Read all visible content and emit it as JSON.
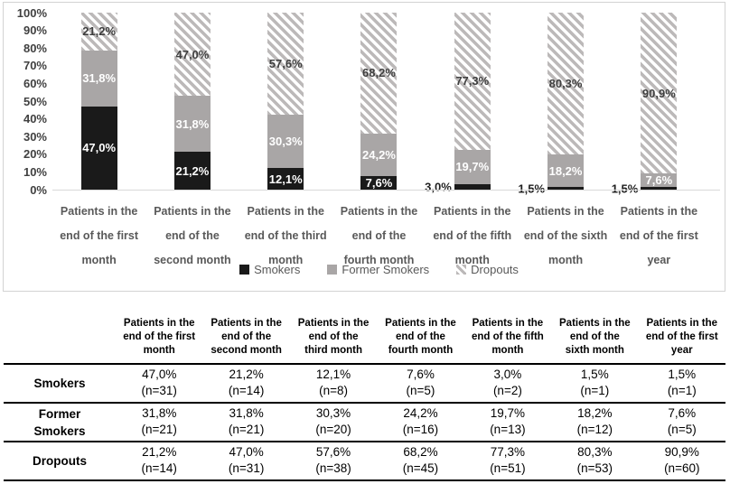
{
  "chart_data": {
    "type": "bar",
    "subtype": "100%-stacked-column",
    "title": "",
    "xlabel": "",
    "ylabel": "",
    "ylim": [
      0,
      100
    ],
    "grid": false,
    "legend_position": "bottom-center",
    "y_ticks": [
      "100%",
      "90%",
      "80%",
      "70%",
      "60%",
      "50%",
      "40%",
      "30%",
      "20%",
      "10%",
      "0%"
    ],
    "categories": [
      "Patients in the end of the first month",
      "Patients in the end of the second month",
      "Patients in the end of the third month",
      "Patients in the end of the fourth month",
      "Patients in the end of the fifth month",
      "Patients in the end of the sixth month",
      "Patients in the end of the first year"
    ],
    "category_label_lines": [
      [
        "Patients in the",
        "end of the first",
        "month"
      ],
      [
        "Patients in the",
        "end of the",
        "second month"
      ],
      [
        "Patients in the",
        "end of the third",
        "month"
      ],
      [
        "Patients in the",
        "end of the",
        "fourth month"
      ],
      [
        "Patients in the",
        "end of the fifth",
        "month"
      ],
      [
        "Patients in the",
        "end of the sixth",
        "month"
      ],
      [
        "Patients in the",
        "end of the first",
        "year"
      ]
    ],
    "series": [
      {
        "key": "smokers",
        "name": "Smokers",
        "color": "#1a1a1a",
        "pattern": "solid",
        "values": [
          47.0,
          21.2,
          12.1,
          7.6,
          3.0,
          1.5,
          1.5
        ],
        "labels": [
          "47,0%",
          "21,2%",
          "12,1%",
          "7,6%",
          "3,0%",
          "1,5%",
          "1,5%"
        ],
        "label_color": "white",
        "label_positions": [
          "inside",
          "inside",
          "inside",
          "inside",
          "outside-left",
          "outside-left",
          "outside-left"
        ]
      },
      {
        "key": "former",
        "name": "Former Smokers",
        "color": "#a9a6a6",
        "pattern": "solid",
        "values": [
          31.8,
          31.8,
          30.3,
          24.2,
          19.7,
          18.2,
          7.6
        ],
        "labels": [
          "31,8%",
          "31,8%",
          "30,3%",
          "24,2%",
          "19,7%",
          "18,2%",
          "7,6%"
        ],
        "label_color": "white",
        "label_positions": [
          "inside",
          "inside",
          "inside",
          "inside",
          "inside",
          "inside",
          "inside"
        ]
      },
      {
        "key": "dropouts",
        "name": "Dropouts",
        "color": "#bcb9b9",
        "pattern": "diagonal-hatch",
        "values": [
          21.2,
          47.0,
          57.6,
          68.2,
          77.3,
          80.3,
          90.9
        ],
        "labels": [
          "21,2%",
          "47,0%",
          "57,6%",
          "68,2%",
          "77,3%",
          "80,3%",
          "90,9%"
        ],
        "label_color": "dark",
        "label_positions": [
          "inside",
          "inside",
          "inside",
          "inside",
          "inside",
          "inside",
          "inside"
        ]
      }
    ],
    "legend": [
      "Smokers",
      "Former Smokers",
      "Dropouts"
    ]
  },
  "table": {
    "header": [
      "",
      "Patients in the end of the first month",
      "Patients in the end of the second month",
      "Patients in the end of the third month",
      "Patients in the end of the fourth month",
      "Patients in the end of the fifth month",
      "Patients in the end of the sixth month",
      "Patients in the end of the first year"
    ],
    "header_lines": [
      [
        ""
      ],
      [
        "Patients in the",
        "end of the first",
        "month"
      ],
      [
        "Patients in the",
        "end of the",
        "second month"
      ],
      [
        "Patients in the",
        "end of the",
        "third month"
      ],
      [
        "Patients in the",
        "end of the",
        "fourth month"
      ],
      [
        "Patients in the",
        "end of the fifth",
        "month"
      ],
      [
        "Patients in the",
        "end of the",
        "sixth month"
      ],
      [
        "Patients in the",
        "end of the first",
        "year"
      ]
    ],
    "rows": [
      {
        "label": "Smokers",
        "cells": [
          [
            "47,0%",
            "(n=31)"
          ],
          [
            "21,2%",
            "(n=14)"
          ],
          [
            "12,1%",
            "(n=8)"
          ],
          [
            "7,6%",
            "(n=5)"
          ],
          [
            "3,0%",
            "(n=2)"
          ],
          [
            "1,5%",
            "(n=1)"
          ],
          [
            "1,5%",
            "(n=1)"
          ]
        ]
      },
      {
        "label": "Former Smokers",
        "cells": [
          [
            "31,8%",
            "(n=21)"
          ],
          [
            "31,8%",
            "(n=21)"
          ],
          [
            "30,3%",
            "(n=20)"
          ],
          [
            "24,2%",
            "(n=16)"
          ],
          [
            "19,7%",
            "(n=13)"
          ],
          [
            "18,2%",
            "(n=12)"
          ],
          [
            "7,6%",
            "(n=5)"
          ]
        ]
      },
      {
        "label": "Dropouts",
        "cells": [
          [
            "21,2%",
            "(n=14)"
          ],
          [
            "47,0%",
            "(n=31)"
          ],
          [
            "57,6%",
            "(n=38)"
          ],
          [
            "68,2%",
            "(n=45)"
          ],
          [
            "77,3%",
            "(n=51)"
          ],
          [
            "80,3%",
            "(n=53)"
          ],
          [
            "90,9%",
            "(n=60)"
          ]
        ]
      }
    ]
  },
  "colors": {
    "smokers": "#1a1a1a",
    "former_smokers": "#a9a6a6",
    "dropouts_hatch": "#bcb9b9",
    "axis_line": "#d9d9d9",
    "panel_border": "#d3d3d3",
    "tick_label": "#404040",
    "category_label": "#595959",
    "table_rule": "#000000"
  }
}
